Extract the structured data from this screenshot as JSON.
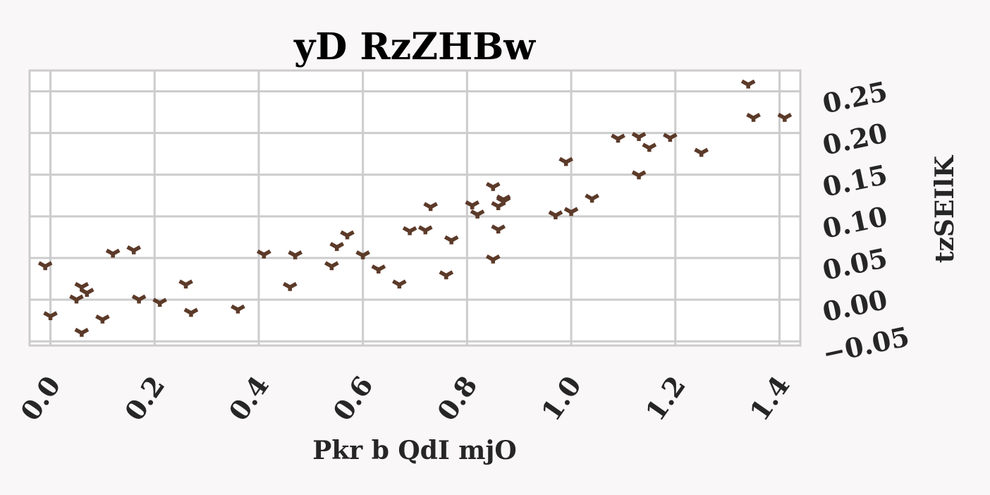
{
  "chart_data": {
    "type": "scatter",
    "title": "yD RzZHBw",
    "xlabel": "Pkr b QdI mjO",
    "ylabel": "tzSEIlK",
    "xlim": [
      -0.04,
      1.44
    ],
    "ylim": [
      -0.055,
      0.275
    ],
    "xticks": [
      0.0,
      0.2,
      0.4,
      0.6,
      0.8,
      1.0,
      1.2,
      1.4
    ],
    "xtick_labels": [
      "0.0",
      "0.2",
      "0.4",
      "0.6",
      "0.8",
      "1.0",
      "1.2",
      "1.4"
    ],
    "yticks": [
      -0.05,
      0.0,
      0.05,
      0.1,
      0.15,
      0.2,
      0.25
    ],
    "ytick_labels": [
      "−0.05",
      "0.00",
      "0.05",
      "0.10",
      "0.15",
      "0.20",
      "0.25"
    ],
    "grid": true,
    "marker": "tri_down",
    "color": "#5c3a29",
    "background": "#f9f7f8",
    "plot_background": "#ffffff",
    "series": [
      {
        "x": [
          -0.01,
          0.0,
          0.05,
          0.06,
          0.07,
          0.06,
          0.1,
          0.12,
          0.16,
          0.17,
          0.21,
          0.26,
          0.27,
          0.36,
          0.41,
          0.46,
          0.47,
          0.54,
          0.55,
          0.57,
          0.6,
          0.63,
          0.67,
          0.69,
          0.72,
          0.73,
          0.76,
          0.77,
          0.81,
          0.82,
          0.85,
          0.86,
          0.86,
          0.87,
          0.87,
          0.85,
          0.97,
          1.0,
          0.99,
          1.04,
          1.09,
          1.13,
          1.13,
          1.15,
          1.19,
          1.25,
          1.34,
          1.35,
          1.41
        ],
        "y": [
          0.04,
          -0.02,
          -0.0,
          0.015,
          0.008,
          -0.04,
          -0.024,
          0.055,
          0.059,
          -0.0,
          -0.004,
          0.018,
          -0.016,
          -0.012,
          0.054,
          0.015,
          0.053,
          0.04,
          0.063,
          0.077,
          0.053,
          0.036,
          0.018,
          0.082,
          0.083,
          0.111,
          0.029,
          0.071,
          0.113,
          0.102,
          0.135,
          0.112,
          0.084,
          0.12,
          0.118,
          0.048,
          0.101,
          0.105,
          0.165,
          0.121,
          0.193,
          0.195,
          0.149,
          0.182,
          0.194,
          0.176,
          0.258,
          0.218,
          0.218
        ]
      }
    ]
  }
}
